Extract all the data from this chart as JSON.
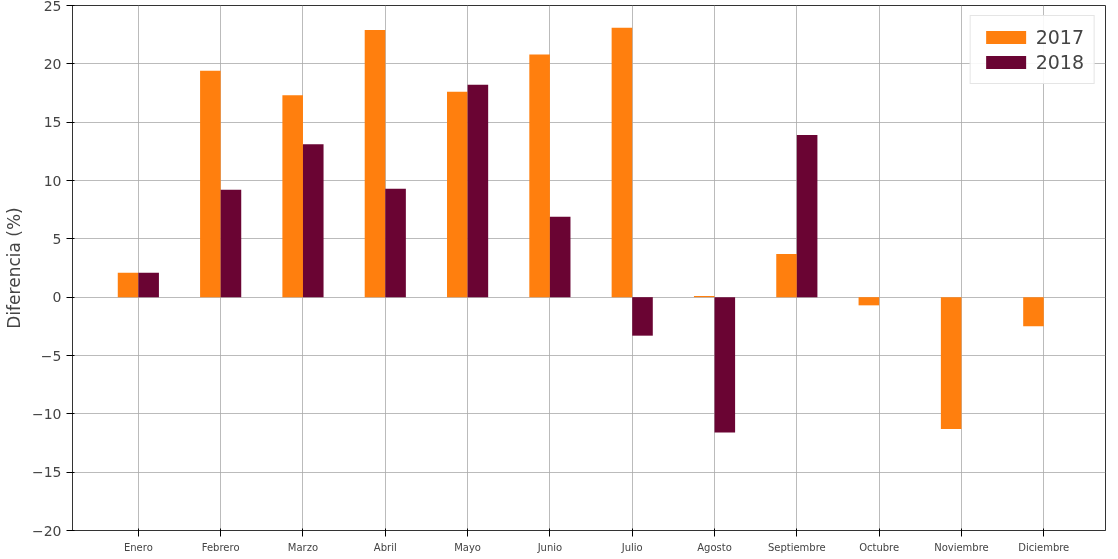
{
  "chart_data": {
    "type": "bar",
    "ylabel": "Diferencia (%)",
    "categories": [
      "Enero",
      "Febrero",
      "Marzo",
      "Abril",
      "Mayo",
      "Junio",
      "Julio",
      "Agosto",
      "Septiembre",
      "Octubre",
      "Noviembre",
      "Diciembre"
    ],
    "series": [
      {
        "name": "2017",
        "color": "#ff7f0e",
        "values": [
          2.1,
          19.4,
          17.3,
          22.9,
          17.6,
          20.8,
          23.1,
          0.1,
          3.7,
          -0.7,
          -11.3,
          -2.5
        ]
      },
      {
        "name": "2018",
        "color": "#6a0433",
        "values": [
          2.1,
          9.2,
          13.1,
          9.3,
          18.2,
          6.9,
          -3.3,
          -11.6,
          13.9,
          null,
          null,
          null
        ]
      }
    ],
    "ylim": [
      -20,
      25
    ],
    "yticks": [
      -20,
      -15,
      -10,
      -5,
      0,
      5,
      10,
      15,
      20,
      25
    ],
    "grid": true,
    "legend": "top right"
  }
}
